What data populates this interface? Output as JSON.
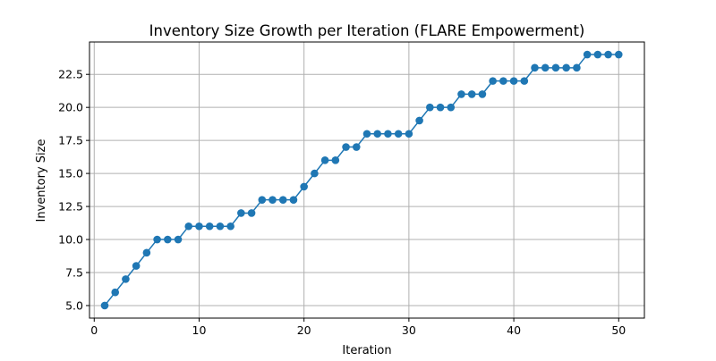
{
  "chart_data": {
    "type": "line",
    "title": "Inventory Size Growth per Iteration (FLARE Empowerment)",
    "xlabel": "Iteration",
    "ylabel": "Inventory Size",
    "xlim": [
      -0.45,
      52.45
    ],
    "ylim": [
      4.05,
      24.95
    ],
    "xticks": [
      0,
      10,
      20,
      30,
      40,
      50
    ],
    "xtick_labels": [
      "0",
      "10",
      "20",
      "30",
      "40",
      "50"
    ],
    "yticks": [
      5.0,
      7.5,
      10.0,
      12.5,
      15.0,
      17.5,
      20.0,
      22.5
    ],
    "ytick_labels": [
      "5.0",
      "7.5",
      "10.0",
      "12.5",
      "15.0",
      "17.5",
      "20.0",
      "22.5"
    ],
    "grid": true,
    "marker": "circle",
    "color": "#1f77b4",
    "series": [
      {
        "x": [
          1,
          2,
          3,
          4,
          5,
          6,
          7,
          8,
          9,
          10,
          11,
          12,
          13,
          14,
          15,
          16,
          17,
          18,
          19,
          20,
          21,
          22,
          23,
          24,
          25,
          26,
          27,
          28,
          29,
          30,
          31,
          32,
          33,
          34,
          35,
          36,
          37,
          38,
          39,
          40,
          41,
          42,
          43,
          44,
          45,
          46,
          47,
          48,
          49,
          50
        ],
        "values": [
          5,
          6,
          7,
          8,
          9,
          10,
          10,
          10,
          11,
          11,
          11,
          11,
          11,
          12,
          12,
          13,
          13,
          13,
          13,
          14,
          15,
          16,
          16,
          17,
          17,
          18,
          18,
          18,
          18,
          18,
          19,
          20,
          20,
          20,
          21,
          21,
          21,
          22,
          22,
          22,
          22,
          23,
          23,
          23,
          23,
          23,
          24,
          24,
          24,
          24
        ]
      }
    ]
  }
}
